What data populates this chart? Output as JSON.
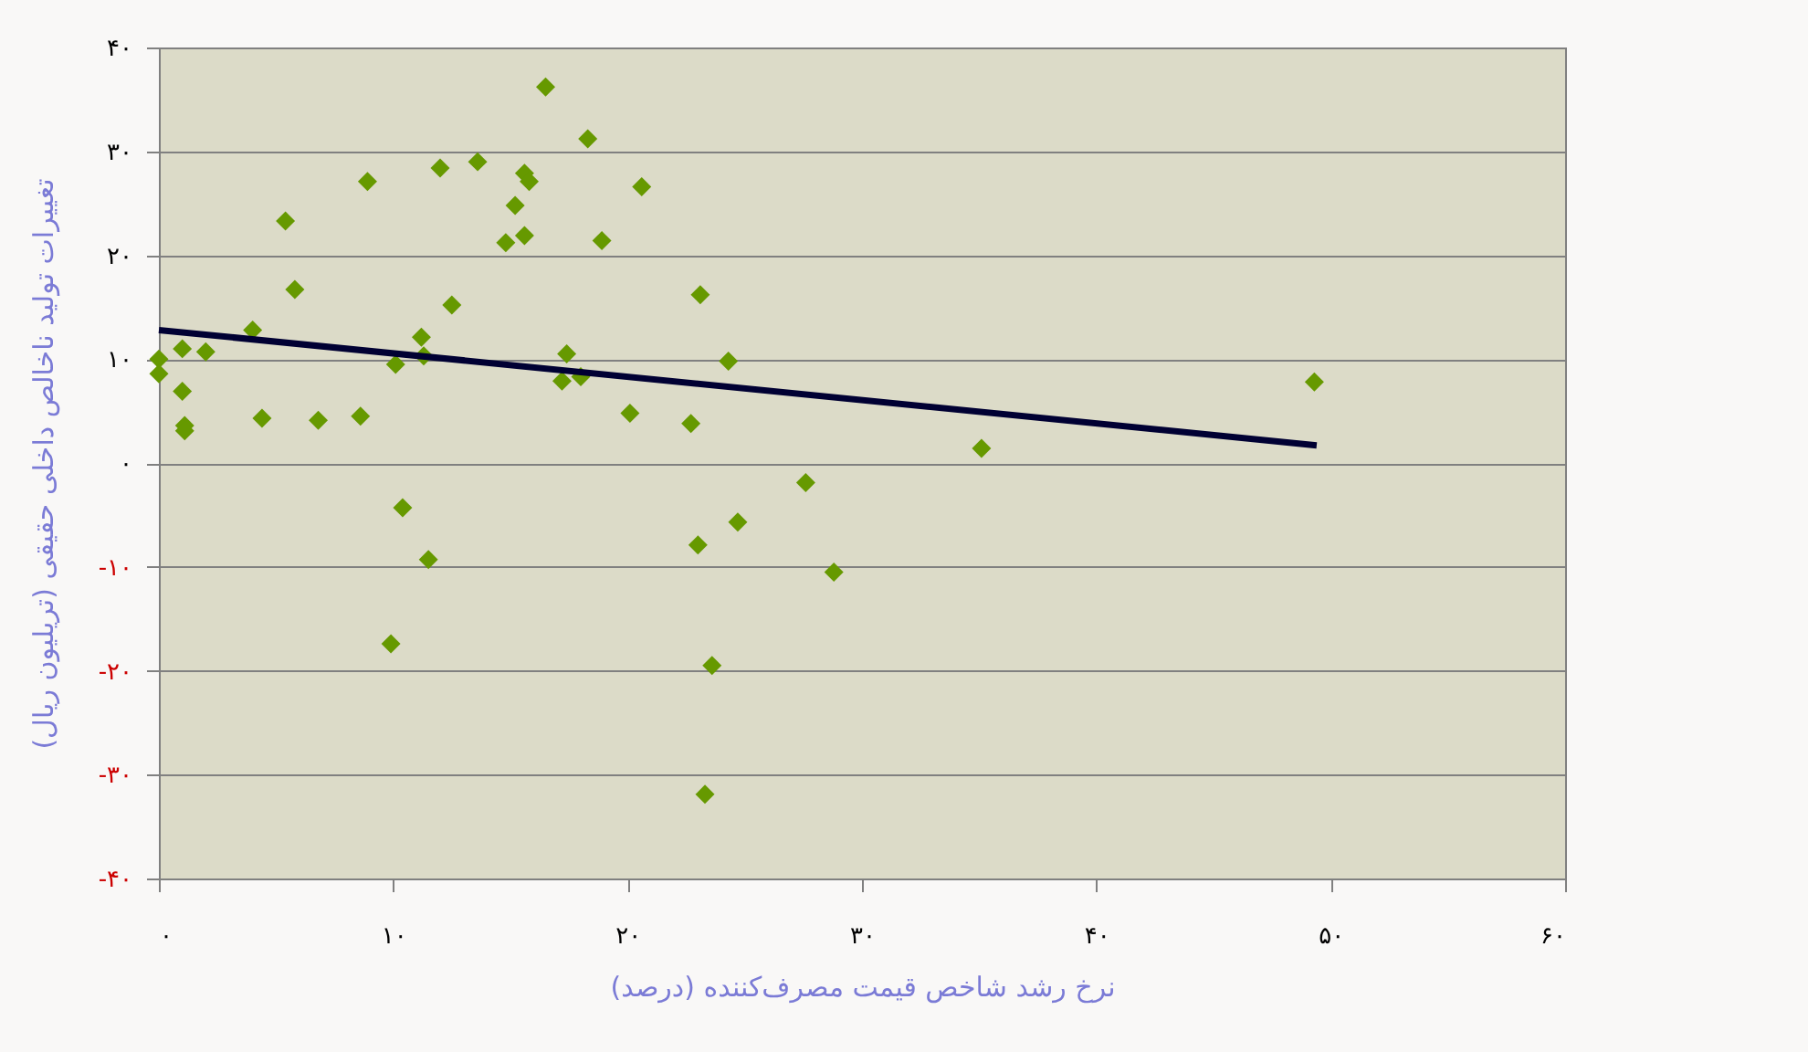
{
  "chart_data": {
    "type": "scatter",
    "xlabel": "نرخ رشد شاخص قیمت مصرف‌کننده (درصد)",
    "ylabel": "تغییرات تولید ناخالص داخلی حقیقی (تریلیون ریال)",
    "xlim": [
      0,
      60
    ],
    "ylim": [
      -40,
      40
    ],
    "xticks": [
      {
        "value": 0,
        "label": "۰"
      },
      {
        "value": 10,
        "label": "۱۰"
      },
      {
        "value": 20,
        "label": "۲۰"
      },
      {
        "value": 30,
        "label": "۳۰"
      },
      {
        "value": 40,
        "label": "۴۰"
      },
      {
        "value": 50,
        "label": "۵۰"
      },
      {
        "value": 60,
        "label": "۶۰"
      }
    ],
    "yticks": [
      {
        "value": -40,
        "label": "-۴۰"
      },
      {
        "value": -30,
        "label": "-۳۰"
      },
      {
        "value": -20,
        "label": "-۲۰"
      },
      {
        "value": -10,
        "label": "-۱۰"
      },
      {
        "value": 0,
        "label": "۰"
      },
      {
        "value": 10,
        "label": "۱۰"
      },
      {
        "value": 20,
        "label": "۲۰"
      },
      {
        "value": 30,
        "label": "۳۰"
      },
      {
        "value": 40,
        "label": "۴۰"
      }
    ],
    "grid": "y",
    "marker": "diamond",
    "series": [
      {
        "color": "#669900",
        "x": [
          0,
          0,
          1.0,
          1.0,
          1.1,
          1.1,
          2.0,
          4.0,
          4.4,
          5.4,
          5.8,
          6.8,
          8.6,
          8.9,
          10.1,
          10.4,
          9.9,
          11.2,
          11.3,
          11.5,
          12.0,
          12.5,
          13.6,
          14.8,
          15.2,
          15.6,
          15.6,
          15.8,
          16.5,
          17.4,
          17.2,
          18.0,
          18.3,
          18.9,
          20.1,
          20.6,
          22.7,
          23.0,
          23.1,
          23.6,
          23.3,
          24.3,
          24.7,
          27.6,
          28.8,
          35.1,
          49.3
        ],
        "values": [
          10,
          8.6,
          11,
          6.9,
          3.6,
          3.1,
          10.7,
          12.8,
          4.3,
          23.3,
          16.7,
          4.1,
          4.5,
          27.1,
          9.5,
          -4.3,
          -17.4,
          12.1,
          10.3,
          -9.3,
          28.4,
          15.2,
          29.0,
          21.2,
          24.8,
          21.9,
          27.9,
          27.1,
          36.2,
          10.5,
          7.9,
          8.3,
          31.2,
          21.4,
          4.8,
          26.6,
          3.8,
          -7.9,
          16.2,
          -19.5,
          -31.9,
          9.8,
          -5.7,
          -1.9,
          -10.5,
          1.4,
          7.8
        ]
      },
      {
        "type": "line",
        "marker": "none",
        "color": "#000033",
        "x": [
          0,
          49.4
        ],
        "values": [
          12.8,
          1.7
        ]
      }
    ]
  }
}
